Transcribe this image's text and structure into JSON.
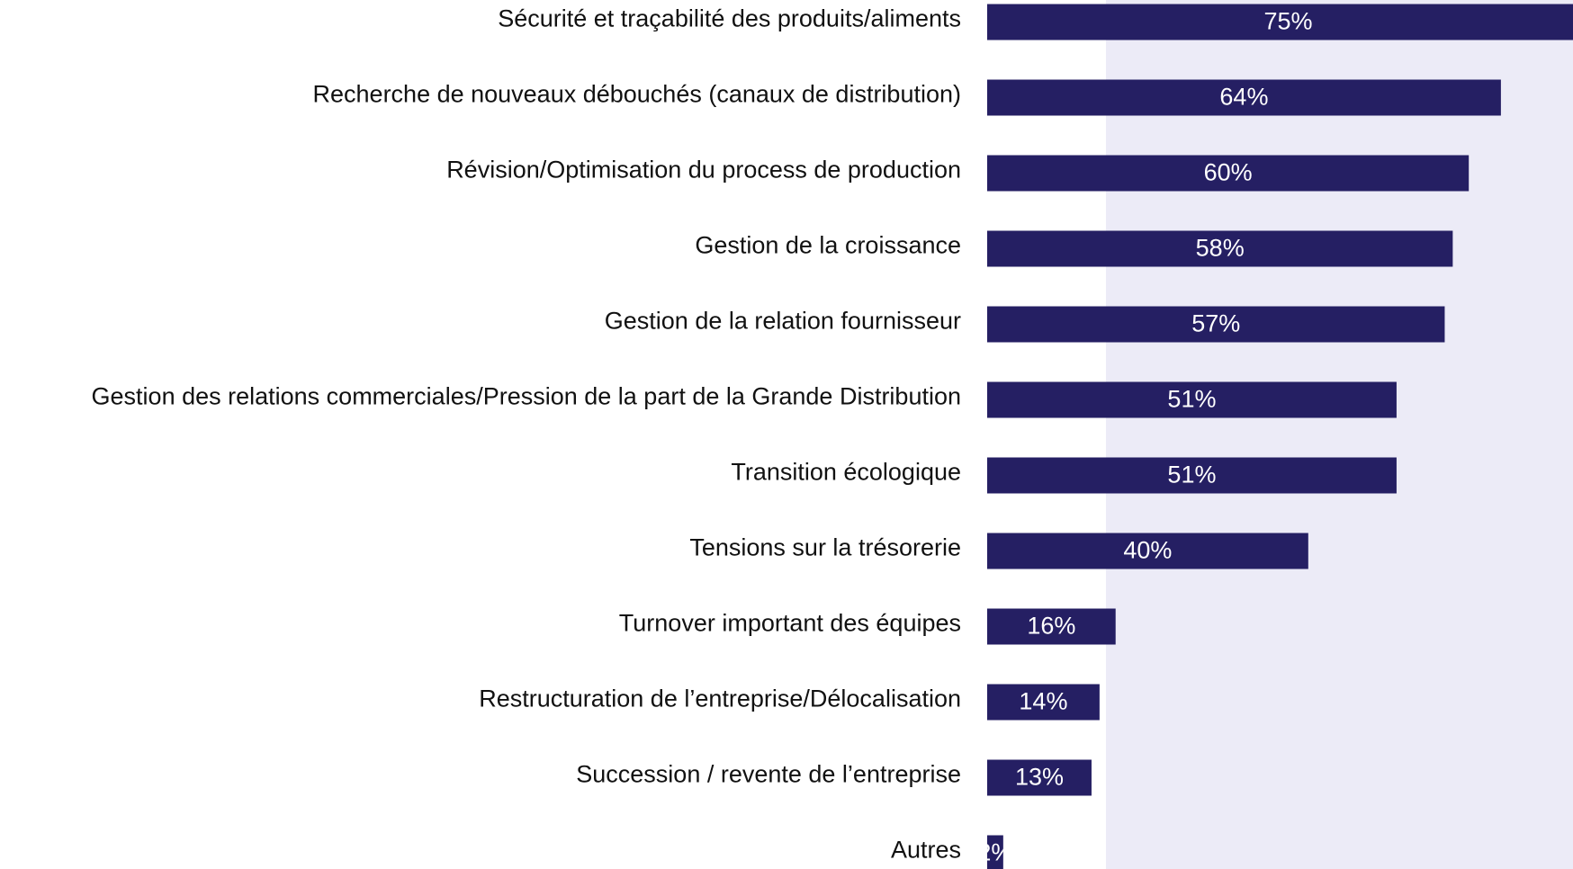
{
  "chart_data": {
    "type": "bar",
    "orientation": "horizontal",
    "categories": [
      "Sécurité et traçabilité des produits/aliments",
      "Recherche de nouveaux débouchés (canaux de distribution)",
      "Révision/Optimisation du process de production",
      "Gestion de la croissance",
      "Gestion de la relation fournisseur",
      "Gestion des relations commerciales/Pression de la part de la Grande Distribution",
      "Transition écologique",
      "Tensions sur la trésorerie",
      "Turnover important des équipes",
      "Restructuration de l’entreprise/Délocalisation",
      "Succession / revente de l’entreprise",
      "Autres"
    ],
    "values": [
      75,
      64,
      60,
      58,
      57,
      51,
      51,
      40,
      16,
      14,
      13,
      2
    ],
    "value_labels": [
      "75%",
      "64%",
      "60%",
      "58%",
      "57%",
      "51%",
      "51%",
      "40%",
      "16%",
      "14%",
      "13%",
      "2%"
    ],
    "color": "#251f63"
  }
}
